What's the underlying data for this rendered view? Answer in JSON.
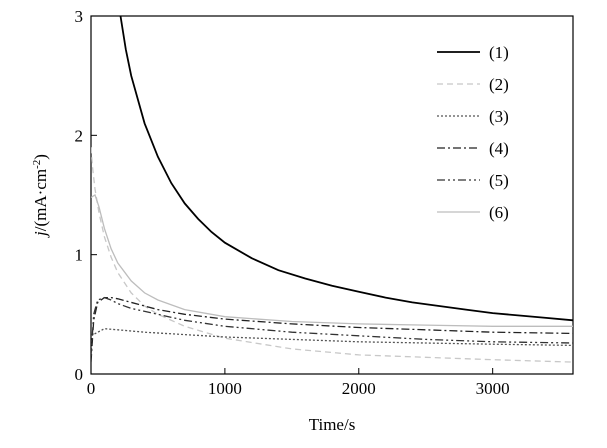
{
  "chart_data": {
    "type": "line",
    "title": "",
    "xlabel": "Time/s",
    "ylabel_italic": "j",
    "ylabel_rest": "/(mA·cm",
    "ylabel_sup": "-2",
    "ylabel_close": ")",
    "xlim": [
      0,
      3600
    ],
    "ylim": [
      0,
      3
    ],
    "xticks": [
      0,
      1000,
      2000,
      3000
    ],
    "xtick_labels": [
      "0",
      "1000",
      "2000",
      "3000"
    ],
    "yticks": [
      0,
      1,
      2,
      3
    ],
    "ytick_labels": [
      "0",
      "1",
      "2",
      "3"
    ],
    "grid": false,
    "legend_position": "top-right",
    "series": [
      {
        "name": "(1)",
        "color": "#000000",
        "dash": "",
        "x": [
          220,
          260,
          300,
          400,
          500,
          600,
          700,
          800,
          900,
          1000,
          1200,
          1400,
          1600,
          1800,
          2000,
          2200,
          2400,
          2600,
          2800,
          3000,
          3200,
          3400,
          3600
        ],
        "y": [
          3.0,
          2.72,
          2.5,
          2.1,
          1.82,
          1.6,
          1.43,
          1.3,
          1.19,
          1.1,
          0.97,
          0.87,
          0.8,
          0.74,
          0.69,
          0.64,
          0.6,
          0.57,
          0.54,
          0.51,
          0.49,
          0.47,
          0.45
        ]
      },
      {
        "name": "(2)",
        "color": "#c8c8c8",
        "dash": "6,4",
        "x": [
          0,
          10,
          30,
          60,
          100,
          150,
          200,
          300,
          400,
          500,
          700,
          1000,
          1500,
          2000,
          2500,
          3000,
          3600
        ],
        "y": [
          1.9,
          1.75,
          1.55,
          1.35,
          1.15,
          0.98,
          0.85,
          0.68,
          0.57,
          0.5,
          0.4,
          0.3,
          0.21,
          0.16,
          0.14,
          0.12,
          0.1
        ]
      },
      {
        "name": "(3)",
        "color": "#555555",
        "dash": "2,2",
        "x": [
          0,
          100,
          200,
          400,
          700,
          1000,
          1500,
          2000,
          2500,
          3000,
          3600
        ],
        "y": [
          0.32,
          0.38,
          0.37,
          0.35,
          0.33,
          0.31,
          0.29,
          0.27,
          0.26,
          0.25,
          0.24
        ]
      },
      {
        "name": "(4)",
        "color": "#222222",
        "dash": "8,3,2,3",
        "x": [
          0,
          20,
          50,
          100,
          150,
          200,
          300,
          500,
          700,
          1000,
          1500,
          2000,
          2500,
          3000,
          3600
        ],
        "y": [
          0.1,
          0.45,
          0.6,
          0.64,
          0.64,
          0.63,
          0.6,
          0.54,
          0.5,
          0.46,
          0.42,
          0.39,
          0.37,
          0.35,
          0.34
        ]
      },
      {
        "name": "(5)",
        "color": "#333333",
        "dash": "8,3,2,3,2,3",
        "x": [
          0,
          20,
          50,
          100,
          150,
          200,
          300,
          500,
          700,
          1000,
          1500,
          2000,
          2500,
          3000,
          3600
        ],
        "y": [
          0.15,
          0.5,
          0.62,
          0.64,
          0.62,
          0.59,
          0.55,
          0.5,
          0.45,
          0.4,
          0.35,
          0.32,
          0.29,
          0.27,
          0.26
        ]
      },
      {
        "name": "(6)",
        "color": "#bdbdbd",
        "dash": "",
        "x": [
          0,
          30,
          60,
          100,
          150,
          200,
          300,
          400,
          500,
          700,
          1000,
          1500,
          2000,
          2500,
          3000,
          3600
        ],
        "y": [
          1.48,
          1.5,
          1.4,
          1.22,
          1.05,
          0.93,
          0.78,
          0.68,
          0.62,
          0.54,
          0.48,
          0.44,
          0.42,
          0.41,
          0.4,
          0.4
        ]
      }
    ]
  }
}
